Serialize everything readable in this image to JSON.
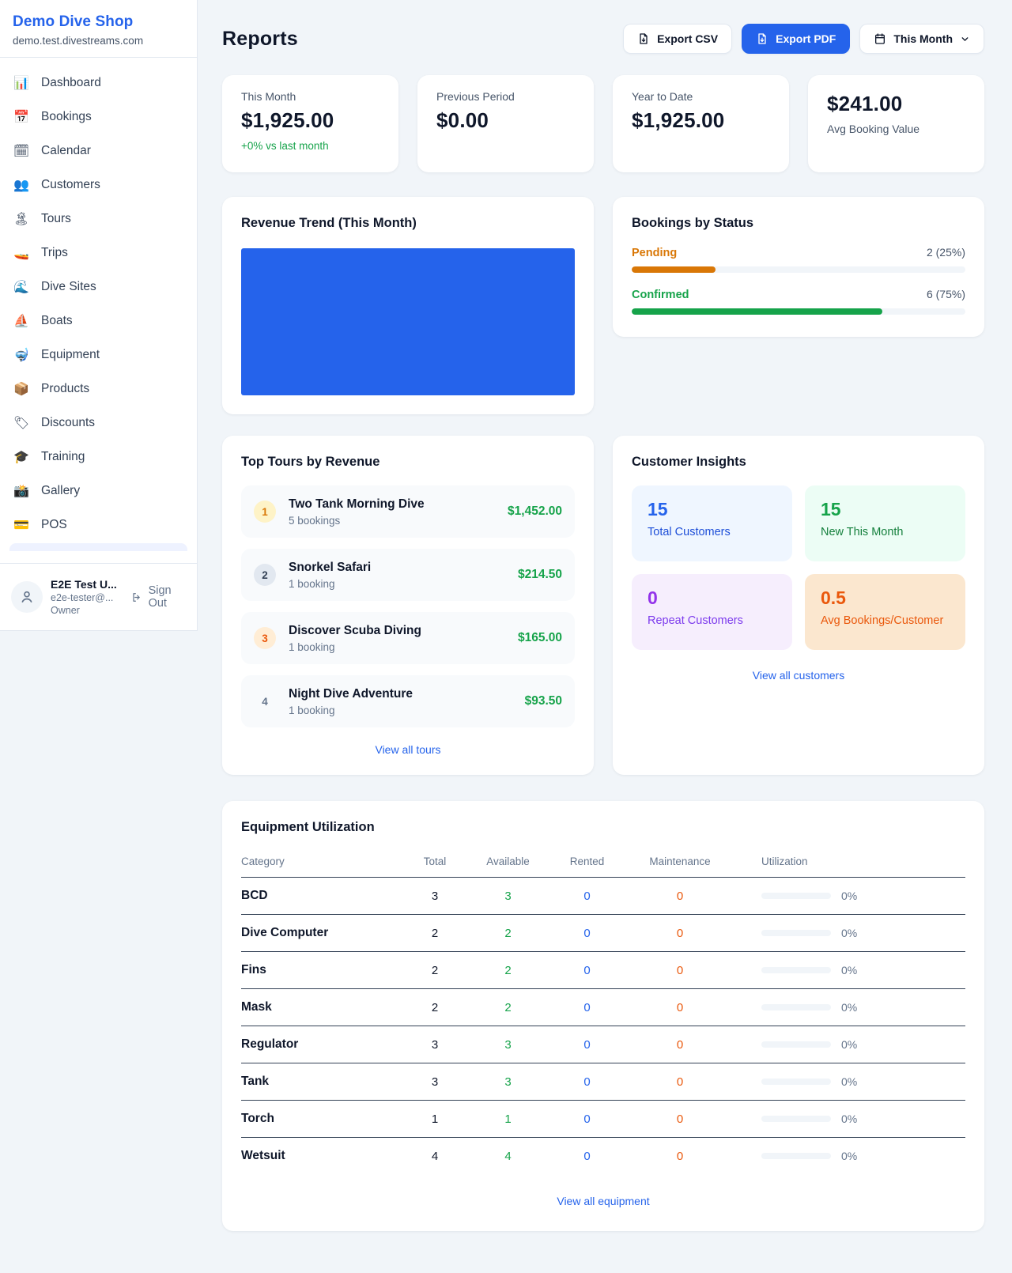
{
  "sidebar": {
    "shop_name": "Demo Dive Shop",
    "shop_domain": "demo.test.divestreams.com",
    "nav": [
      {
        "name": "dashboard",
        "icon": "📊",
        "label": "Dashboard"
      },
      {
        "name": "bookings",
        "icon": "📅",
        "label": "Bookings"
      },
      {
        "name": "calendar",
        "icon": "🗓",
        "label": "Calendar"
      },
      {
        "name": "customers",
        "icon": "👥",
        "label": "Customers"
      },
      {
        "name": "tours",
        "icon": "🏝",
        "label": "Tours"
      },
      {
        "name": "trips",
        "icon": "🚤",
        "label": "Trips"
      },
      {
        "name": "dive-sites",
        "icon": "🌊",
        "label": "Dive Sites"
      },
      {
        "name": "boats",
        "icon": "⛵",
        "label": "Boats"
      },
      {
        "name": "equipment",
        "icon": "🤿",
        "label": "Equipment"
      },
      {
        "name": "products",
        "icon": "📦",
        "label": "Products"
      },
      {
        "name": "discounts",
        "icon": "🏷",
        "label": "Discounts"
      },
      {
        "name": "training",
        "icon": "🎓",
        "label": "Training"
      },
      {
        "name": "gallery",
        "icon": "📸",
        "label": "Gallery"
      },
      {
        "name": "pos",
        "icon": "💳",
        "label": "POS"
      }
    ],
    "user": {
      "name": "E2E Test U...",
      "email": "e2e-tester@...",
      "role": "Owner",
      "sign_out_label": "Sign Out"
    }
  },
  "header": {
    "title": "Reports",
    "export_csv_label": "Export CSV",
    "export_pdf_label": "Export PDF",
    "period_label": "This Month"
  },
  "stats": [
    {
      "label": "This Month",
      "value": "$1,925.00",
      "note": "+0% vs last month"
    },
    {
      "label": "Previous Period",
      "value": "$0.00"
    },
    {
      "label": "Year to Date",
      "value": "$1,925.00"
    },
    {
      "label": "Avg Booking Value",
      "value": "$241.00",
      "value_first": true
    }
  ],
  "revenue_trend": {
    "title": "Revenue Trend (This Month)"
  },
  "chart_data": {
    "type": "area",
    "title": "Revenue Trend (This Month)",
    "description": "plot area rendered as a single solid filled block (one full-width bar)",
    "fill_color": "#2563eb",
    "series": [
      {
        "name": "Revenue",
        "values": [
          1925
        ]
      }
    ]
  },
  "bookings_by_status": {
    "title": "Bookings by Status",
    "rows": [
      {
        "label": "Pending",
        "value": "2 (25%)",
        "pct": 25,
        "color": "#d97706"
      },
      {
        "label": "Confirmed",
        "value": "6 (75%)",
        "pct": 75,
        "color": "#16a34a"
      }
    ]
  },
  "top_tours": {
    "title": "Top Tours by Revenue",
    "link_label": "View all tours",
    "items": [
      {
        "rank": "1",
        "badge_bg": "#fef3c7",
        "badge_fg": "#d97706",
        "name": "Two Tank Morning Dive",
        "sub": "5 bookings",
        "price": "$1,452.00"
      },
      {
        "rank": "2",
        "badge_bg": "#e2e8f0",
        "badge_fg": "#334155",
        "name": "Snorkel Safari",
        "sub": "1 booking",
        "price": "$214.50"
      },
      {
        "rank": "3",
        "badge_bg": "#ffedd5",
        "badge_fg": "#ea580c",
        "name": "Discover Scuba Diving",
        "sub": "1 booking",
        "price": "$165.00"
      },
      {
        "rank": "4",
        "badge_bg": "transparent",
        "badge_fg": "#64748b",
        "name": "Night Dive Adventure",
        "sub": "1 booking",
        "price": "$93.50"
      }
    ]
  },
  "customer_insights": {
    "title": "Customer Insights",
    "link_label": "View all customers",
    "tiles": [
      {
        "num": "15",
        "label": "Total Customers",
        "bg": "#eff6ff",
        "fg": "#2563eb",
        "label_fg": "#1d4ed8"
      },
      {
        "num": "15",
        "label": "New This Month",
        "bg": "#ecfdf5",
        "fg": "#16a34a",
        "label_fg": "#15803d"
      },
      {
        "num": "0",
        "label": "Repeat Customers",
        "bg": "#f6eefd",
        "fg": "#9333ea",
        "label_fg": "#7c3aed"
      },
      {
        "num": "0.5",
        "label": "Avg Bookings/Customer",
        "bg": "#fbe7cf",
        "fg": "#ea580c",
        "label_fg": "#ea580c"
      }
    ]
  },
  "equipment": {
    "title": "Equipment Utilization",
    "link_label": "View all equipment",
    "columns": [
      "Category",
      "Total",
      "Available",
      "Rented",
      "Maintenance",
      "Utilization"
    ],
    "rows": [
      {
        "category": "BCD",
        "total": "3",
        "available": "3",
        "rented": "0",
        "maintenance": "0",
        "utilization": "0%",
        "pct": 0
      },
      {
        "category": "Dive Computer",
        "total": "2",
        "available": "2",
        "rented": "0",
        "maintenance": "0",
        "utilization": "0%",
        "pct": 0
      },
      {
        "category": "Fins",
        "total": "2",
        "available": "2",
        "rented": "0",
        "maintenance": "0",
        "utilization": "0%",
        "pct": 0
      },
      {
        "category": "Mask",
        "total": "2",
        "available": "2",
        "rented": "0",
        "maintenance": "0",
        "utilization": "0%",
        "pct": 0
      },
      {
        "category": "Regulator",
        "total": "3",
        "available": "3",
        "rented": "0",
        "maintenance": "0",
        "utilization": "0%",
        "pct": 0
      },
      {
        "category": "Tank",
        "total": "3",
        "available": "3",
        "rented": "0",
        "maintenance": "0",
        "utilization": "0%",
        "pct": 0
      },
      {
        "category": "Torch",
        "total": "1",
        "available": "1",
        "rented": "0",
        "maintenance": "0",
        "utilization": "0%",
        "pct": 0
      },
      {
        "category": "Wetsuit",
        "total": "4",
        "available": "4",
        "rented": "0",
        "maintenance": "0",
        "utilization": "0%",
        "pct": 0
      }
    ]
  }
}
